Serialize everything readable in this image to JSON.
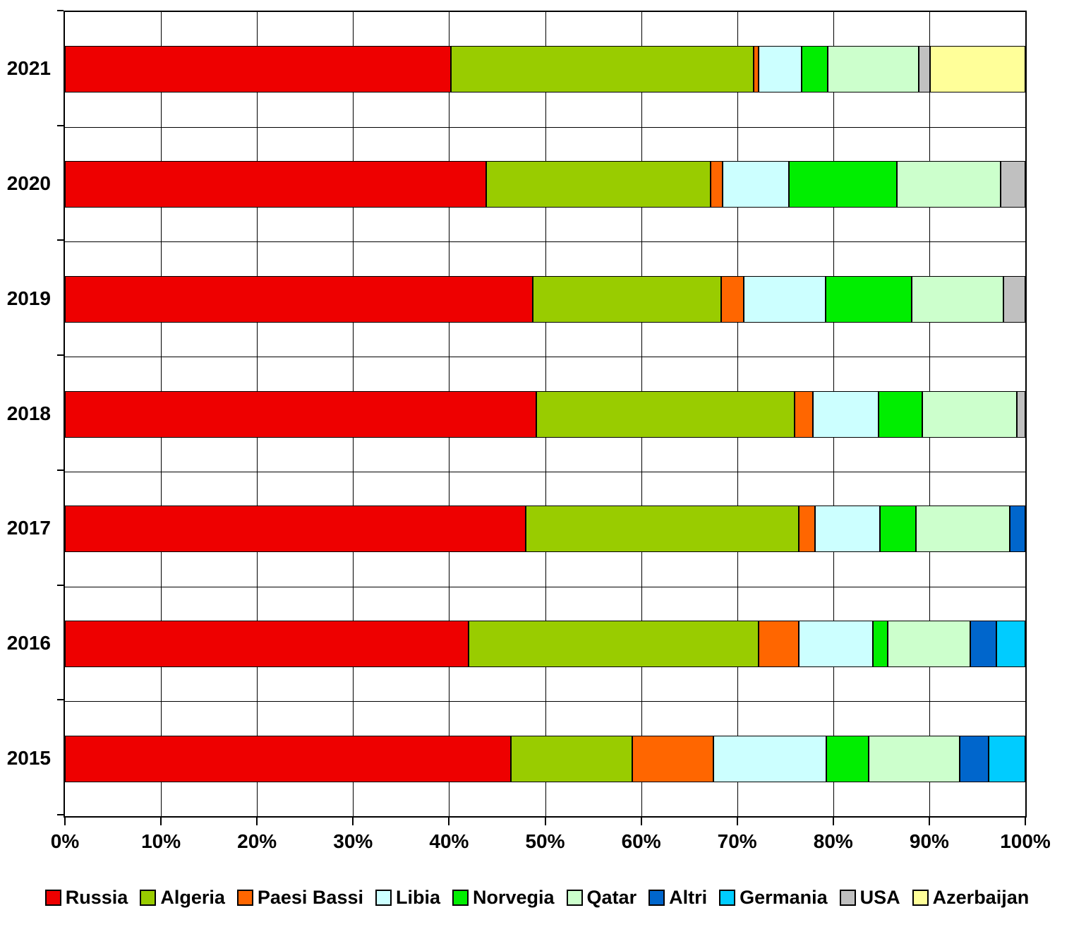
{
  "chart_data": {
    "type": "bar",
    "orientation": "horizontal",
    "stacked": true,
    "unit": "%",
    "title": "",
    "xlabel": "",
    "ylabel": "",
    "grid": true,
    "legend_position": "bottom",
    "categories": [
      "2021",
      "2020",
      "2019",
      "2018",
      "2017",
      "2016",
      "2015"
    ],
    "x_axis": {
      "min": 0,
      "max": 100,
      "tick_step": 10,
      "ticks": [
        "0%",
        "10%",
        "20%",
        "30%",
        "40%",
        "50%",
        "60%",
        "70%",
        "80%",
        "90%",
        "100%"
      ]
    },
    "series": [
      {
        "name": "Russia",
        "color": "#EE0000",
        "values": [
          40.2,
          43.9,
          48.7,
          49.1,
          48.0,
          42.0,
          46.4
        ]
      },
      {
        "name": "Algeria",
        "color": "#99CC00",
        "values": [
          31.5,
          23.3,
          19.6,
          26.9,
          28.4,
          30.2,
          12.7
        ]
      },
      {
        "name": "Paesi Bassi",
        "color": "#FF6600",
        "values": [
          0.5,
          1.3,
          2.4,
          1.9,
          1.7,
          4.2,
          8.4
        ]
      },
      {
        "name": "Libia",
        "color": "#CCFFFF",
        "values": [
          4.5,
          6.9,
          8.5,
          6.8,
          6.8,
          7.7,
          11.8
        ]
      },
      {
        "name": "Norvegia",
        "color": "#00EE00",
        "values": [
          2.7,
          11.2,
          9.0,
          4.6,
          3.7,
          1.6,
          4.4
        ]
      },
      {
        "name": "Qatar",
        "color": "#CCFFCC",
        "values": [
          9.5,
          10.8,
          9.5,
          9.8,
          9.8,
          8.6,
          9.5
        ]
      },
      {
        "name": "Altri",
        "color": "#0066CC",
        "values": [
          0,
          0,
          0,
          0,
          1.6,
          2.7,
          3.0
        ]
      },
      {
        "name": "Germania",
        "color": "#00CCFF",
        "values": [
          0,
          0,
          0,
          0,
          0,
          3.0,
          3.8
        ]
      },
      {
        "name": "USA",
        "color": "#C0C0C0",
        "values": [
          1.2,
          2.6,
          2.3,
          0.9,
          0,
          0,
          0
        ]
      },
      {
        "name": "Azerbaijan",
        "color": "#FFFF99",
        "values": [
          9.9,
          0,
          0,
          0,
          0,
          0,
          0
        ]
      }
    ]
  }
}
